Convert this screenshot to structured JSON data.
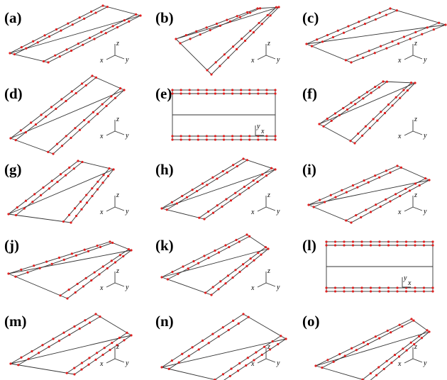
{
  "panels": [
    {
      "label": "(a)",
      "axes": [
        "x",
        "y",
        "z"
      ]
    },
    {
      "label": "(b)",
      "axes": [
        "x",
        "y",
        "z"
      ]
    },
    {
      "label": "(c)",
      "axes": [
        "x",
        "y",
        "z"
      ]
    },
    {
      "label": "(d)",
      "axes": [
        "x",
        "y",
        "z"
      ]
    },
    {
      "label": "(e)",
      "axes": [
        "y",
        "x"
      ]
    },
    {
      "label": "(f)",
      "axes": [
        "x",
        "y",
        "z"
      ]
    },
    {
      "label": "(g)",
      "axes": [
        "x",
        "y",
        "z"
      ]
    },
    {
      "label": "(h)",
      "axes": [
        "x",
        "y",
        "z"
      ]
    },
    {
      "label": "(i)",
      "axes": [
        "x",
        "y",
        "z"
      ]
    },
    {
      "label": "(j)",
      "axes": [
        "x",
        "y",
        "z"
      ]
    },
    {
      "label": "(k)",
      "axes": [
        "x",
        "y",
        "z"
      ]
    },
    {
      "label": "(l)",
      "axes": [
        "y",
        "x"
      ]
    },
    {
      "label": "(m)",
      "axes": [
        "x",
        "y",
        "z"
      ]
    },
    {
      "label": "(n)",
      "axes": [
        "x",
        "y",
        "z"
      ]
    },
    {
      "label": "(o)",
      "axes": [
        "x",
        "y",
        "z"
      ]
    }
  ]
}
